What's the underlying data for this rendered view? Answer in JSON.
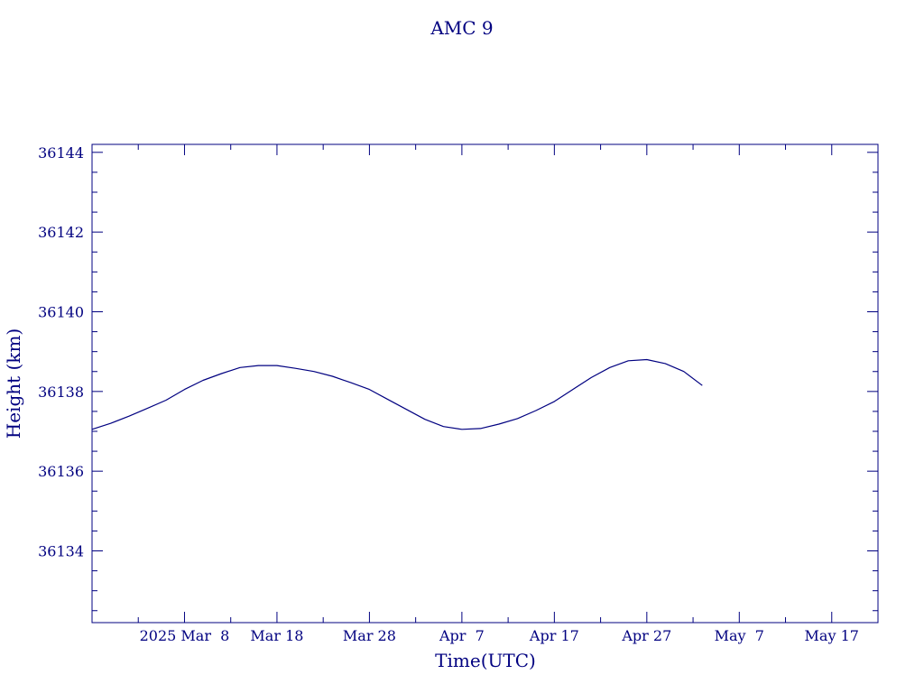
{
  "chart_data": {
    "type": "line",
    "title": "AMC 9",
    "xlabel": "Time(UTC)",
    "ylabel": "Height (km)",
    "color": "#000080",
    "grid": false,
    "legend": "none",
    "xlim": [
      "2025-02-26",
      "2025-05-22"
    ],
    "ylim": [
      36132.2,
      36144.2
    ],
    "y_ticks": [
      36134,
      36136,
      36138,
      36140,
      36142,
      36144
    ],
    "x_ticks": [
      {
        "date": "2025-02-26",
        "label": ""
      },
      {
        "date": "2025-03-08",
        "label": "2025 Mar  8"
      },
      {
        "date": "2025-03-18",
        "label": "Mar 18"
      },
      {
        "date": "2025-03-28",
        "label": "Mar 28"
      },
      {
        "date": "2025-04-07",
        "label": "Apr  7"
      },
      {
        "date": "2025-04-17",
        "label": "Apr 17"
      },
      {
        "date": "2025-04-27",
        "label": "Apr 27"
      },
      {
        "date": "2025-05-07",
        "label": "May  7"
      },
      {
        "date": "2025-05-17",
        "label": "May 17"
      }
    ],
    "series": [
      {
        "x": [
          "2025-02-26",
          "2025-02-28",
          "2025-03-02",
          "2025-03-04",
          "2025-03-06",
          "2025-03-08",
          "2025-03-10",
          "2025-03-12",
          "2025-03-14",
          "2025-03-16",
          "2025-03-18",
          "2025-03-20",
          "2025-03-22",
          "2025-03-24",
          "2025-03-26",
          "2025-03-28",
          "2025-03-30",
          "2025-04-01",
          "2025-04-03",
          "2025-04-05",
          "2025-04-07",
          "2025-04-09",
          "2025-04-11",
          "2025-04-13",
          "2025-04-15",
          "2025-04-17",
          "2025-04-19",
          "2025-04-21",
          "2025-04-23",
          "2025-04-25",
          "2025-04-27",
          "2025-04-29",
          "2025-05-01",
          "2025-05-03"
        ],
        "y": [
          36137.05,
          36137.2,
          36137.38,
          36137.58,
          36137.78,
          36138.05,
          36138.28,
          36138.45,
          36138.6,
          36138.65,
          36138.65,
          36138.58,
          36138.5,
          36138.38,
          36138.22,
          36138.05,
          36137.8,
          36137.55,
          36137.3,
          36137.12,
          36137.05,
          36137.07,
          36137.18,
          36137.32,
          36137.52,
          36137.75,
          36138.05,
          36138.35,
          36138.6,
          36138.77,
          36138.8,
          36138.7,
          36138.5,
          36138.15
        ]
      }
    ]
  }
}
